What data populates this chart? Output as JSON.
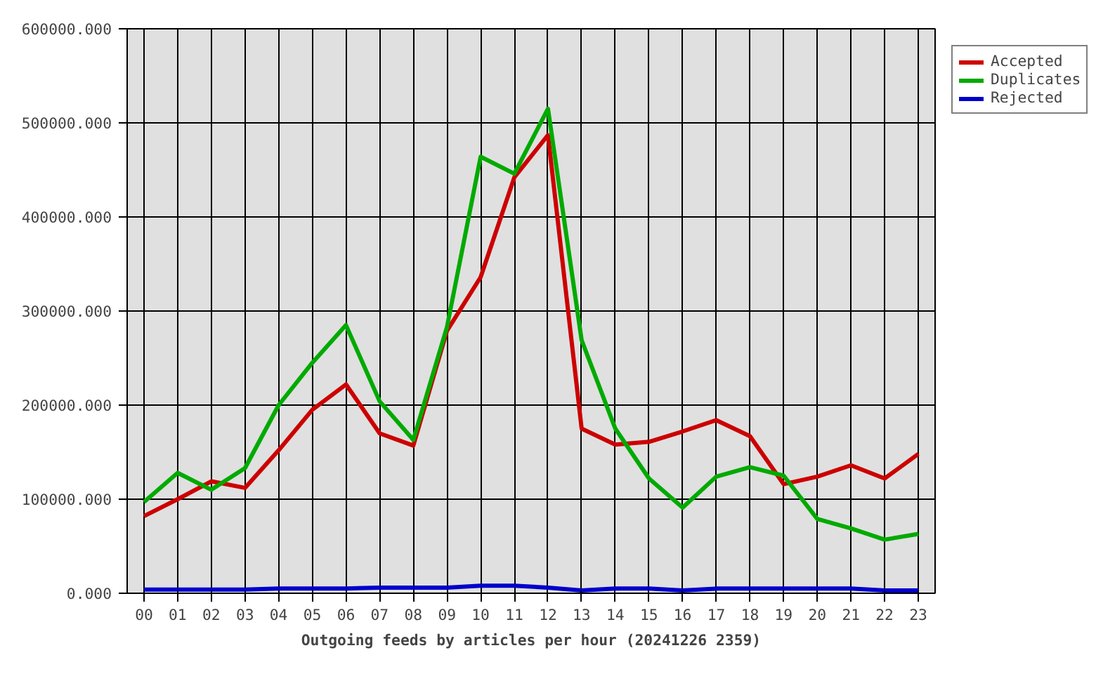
{
  "chart_data": {
    "type": "line",
    "xlabel": "Outgoing feeds by articles per hour (20241226 2359)",
    "categories": [
      "00",
      "01",
      "02",
      "03",
      "04",
      "05",
      "06",
      "07",
      "08",
      "09",
      "10",
      "11",
      "12",
      "13",
      "14",
      "15",
      "16",
      "17",
      "18",
      "19",
      "20",
      "21",
      "22",
      "23"
    ],
    "series": [
      {
        "name": "Accepted",
        "color": "#cc0000",
        "values": [
          82000,
          100000,
          119000,
          112000,
          152000,
          195000,
          222000,
          170000,
          157000,
          279000,
          336000,
          442000,
          487000,
          175000,
          158000,
          161000,
          172000,
          184000,
          167000,
          116000,
          124000,
          136000,
          122000,
          148000
        ]
      },
      {
        "name": "Duplicates",
        "color": "#00aa00",
        "values": [
          97000,
          128000,
          110000,
          133000,
          200000,
          245000,
          285000,
          204000,
          163000,
          283000,
          464000,
          446000,
          515000,
          269000,
          175000,
          122000,
          91000,
          124000,
          134000,
          125000,
          79000,
          69000,
          57000,
          63000
        ]
      },
      {
        "name": "Rejected",
        "color": "#0000cc",
        "values": [
          4000,
          4000,
          4000,
          4000,
          5000,
          5000,
          5000,
          6000,
          6000,
          6000,
          8000,
          8000,
          6000,
          3000,
          5000,
          5000,
          3000,
          5000,
          5000,
          5000,
          5000,
          5000,
          3000,
          3000
        ]
      }
    ],
    "ylim": [
      0,
      600000
    ],
    "yticks": [
      {
        "value": 0,
        "label": "0.000"
      },
      {
        "value": 100000,
        "label": "100000.000"
      },
      {
        "value": 200000,
        "label": "200000.000"
      },
      {
        "value": 300000,
        "label": "300000.000"
      },
      {
        "value": 400000,
        "label": "400000.000"
      },
      {
        "value": 500000,
        "label": "500000.000"
      },
      {
        "value": 600000,
        "label": "600000.000"
      }
    ],
    "grid": true,
    "legend": "top right"
  }
}
